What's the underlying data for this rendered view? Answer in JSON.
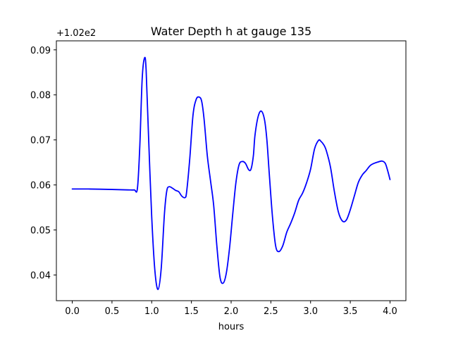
{
  "chart_data": {
    "type": "line",
    "title": "Water Depth h at gauge 135",
    "xlabel": "hours",
    "ylabel": "",
    "y_offset_label": "+1.02e2",
    "xlim": [
      -0.2,
      4.2
    ],
    "ylim": [
      0.0343,
      0.092
    ],
    "x_ticks": [
      0.0,
      0.5,
      1.0,
      1.5,
      2.0,
      2.5,
      3.0,
      3.5,
      4.0
    ],
    "x_tick_labels": [
      "0.0",
      "0.5",
      "1.0",
      "1.5",
      "2.0",
      "2.5",
      "3.0",
      "3.5",
      "4.0"
    ],
    "y_ticks": [
      0.04,
      0.05,
      0.06,
      0.07,
      0.08,
      0.09
    ],
    "y_tick_labels": [
      "0.04",
      "0.05",
      "0.06",
      "0.07",
      "0.08",
      "0.09"
    ],
    "grid": false,
    "series": [
      {
        "color": "#0000ff",
        "x": [
          0.0,
          0.2,
          0.5,
          0.7,
          0.78,
          0.82,
          0.85,
          0.88,
          0.91,
          0.93,
          0.96,
          1.0,
          1.04,
          1.08,
          1.12,
          1.16,
          1.19,
          1.22,
          1.26,
          1.3,
          1.34,
          1.38,
          1.42,
          1.44,
          1.48,
          1.52,
          1.56,
          1.6,
          1.63,
          1.66,
          1.7,
          1.74,
          1.78,
          1.82,
          1.86,
          1.9,
          1.94,
          1.98,
          2.02,
          2.06,
          2.1,
          2.14,
          2.18,
          2.22,
          2.25,
          2.28,
          2.3,
          2.34,
          2.38,
          2.42,
          2.45,
          2.48,
          2.52,
          2.56,
          2.6,
          2.65,
          2.7,
          2.75,
          2.8,
          2.85,
          2.9,
          2.95,
          3.0,
          3.05,
          3.1,
          3.13,
          3.17,
          3.2,
          3.25,
          3.3,
          3.35,
          3.4,
          3.45,
          3.5,
          3.55,
          3.6,
          3.65,
          3.7,
          3.75,
          3.8,
          3.85,
          3.9,
          3.94,
          3.97,
          4.0
        ],
        "y": [
          0.0591,
          0.0591,
          0.059,
          0.0589,
          0.0589,
          0.0592,
          0.0685,
          0.0835,
          0.0882,
          0.0855,
          0.071,
          0.053,
          0.041,
          0.0368,
          0.0415,
          0.0535,
          0.0587,
          0.0596,
          0.0593,
          0.0588,
          0.0585,
          0.0575,
          0.0572,
          0.0585,
          0.066,
          0.0755,
          0.079,
          0.0795,
          0.0785,
          0.0745,
          0.0665,
          0.061,
          0.0555,
          0.0465,
          0.0395,
          0.0382,
          0.0405,
          0.046,
          0.0535,
          0.0605,
          0.0645,
          0.0652,
          0.0648,
          0.0634,
          0.0635,
          0.0665,
          0.071,
          0.0752,
          0.0764,
          0.0745,
          0.07,
          0.0625,
          0.053,
          0.0465,
          0.0452,
          0.0465,
          0.0495,
          0.0515,
          0.0538,
          0.0566,
          0.0582,
          0.0605,
          0.0635,
          0.068,
          0.0699,
          0.0697,
          0.0688,
          0.0675,
          0.064,
          0.0585,
          0.054,
          0.052,
          0.0522,
          0.0545,
          0.0575,
          0.0605,
          0.0622,
          0.0632,
          0.0643,
          0.0648,
          0.0651,
          0.0653,
          0.0648,
          0.0632,
          0.0612
        ]
      }
    ]
  }
}
